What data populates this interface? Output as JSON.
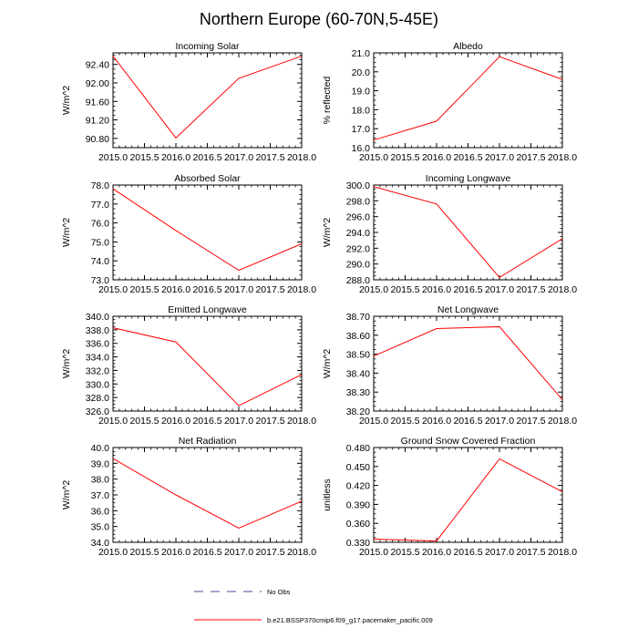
{
  "figure": {
    "title": "Northern Europe (60-70N,5-45E)"
  },
  "legend": {
    "entries": [
      {
        "label": "No Obs",
        "color": "#4b4b9a",
        "style": "dashed"
      },
      {
        "label": "b.e21.BSSP370cmip6.f09_g17.pacemaker_pacific.009",
        "color": "#ff0000",
        "style": "solid"
      }
    ]
  },
  "chart_data": [
    {
      "type": "line",
      "title": "Incoming Solar",
      "ylabel": "W/m^2",
      "x": [
        2015.0,
        2016.0,
        2017.0,
        2018.0
      ],
      "values": [
        92.58,
        90.81,
        92.1,
        92.58
      ],
      "ylim": [
        90.6,
        92.65
      ],
      "yticks": [
        90.8,
        91.2,
        91.6,
        92.0,
        92.4
      ],
      "ydec": 2,
      "color": "#ff0000"
    },
    {
      "type": "line",
      "title": "Albedo",
      "ylabel": "% reflected",
      "x": [
        2015.0,
        2016.0,
        2017.0,
        2018.0
      ],
      "values": [
        16.4,
        17.4,
        20.8,
        19.6
      ],
      "ylim": [
        16.0,
        21.0
      ],
      "yticks": [
        16.0,
        17.0,
        18.0,
        19.0,
        20.0,
        21.0
      ],
      "ydec": 1,
      "color": "#ff0000"
    },
    {
      "type": "line",
      "title": "Absorbed Solar",
      "ylabel": "W/m^2",
      "x": [
        2015.0,
        2016.0,
        2017.0,
        2018.0
      ],
      "values": [
        77.8,
        75.6,
        73.5,
        74.9
      ],
      "ylim": [
        73.0,
        78.0
      ],
      "yticks": [
        73.0,
        74.0,
        75.0,
        76.0,
        77.0,
        78.0
      ],
      "ydec": 1,
      "color": "#ff0000"
    },
    {
      "type": "line",
      "title": "Incoming Longwave",
      "ylabel": "W/m^2",
      "x": [
        2015.0,
        2016.0,
        2017.0,
        2018.0
      ],
      "values": [
        299.8,
        297.6,
        288.3,
        293.2
      ],
      "ylim": [
        288.0,
        300.0
      ],
      "yticks": [
        288.0,
        290.0,
        292.0,
        294.0,
        296.0,
        298.0,
        300.0
      ],
      "ydec": 1,
      "color": "#ff0000"
    },
    {
      "type": "line",
      "title": "Emitted Longwave",
      "ylabel": "W/m^2",
      "x": [
        2015.0,
        2016.0,
        2017.0,
        2018.0
      ],
      "values": [
        338.3,
        336.2,
        326.8,
        331.4
      ],
      "ylim": [
        326.0,
        340.0
      ],
      "yticks": [
        326.0,
        328.0,
        330.0,
        332.0,
        334.0,
        336.0,
        338.0,
        340.0
      ],
      "ydec": 1,
      "color": "#ff0000"
    },
    {
      "type": "line",
      "title": "Net Longwave",
      "ylabel": "W/m^2",
      "x": [
        2015.0,
        2016.0,
        2017.0,
        2018.0
      ],
      "values": [
        38.49,
        38.635,
        38.645,
        38.26
      ],
      "ylim": [
        38.2,
        38.7
      ],
      "yticks": [
        38.2,
        38.3,
        38.4,
        38.5,
        38.6,
        38.7
      ],
      "ydec": 2,
      "color": "#ff0000"
    },
    {
      "type": "line",
      "title": "Net Radiation",
      "ylabel": "W/m^2",
      "x": [
        2015.0,
        2016.0,
        2017.0,
        2018.0
      ],
      "values": [
        39.3,
        37.0,
        34.9,
        36.6
      ],
      "ylim": [
        34.0,
        40.0
      ],
      "yticks": [
        34.0,
        35.0,
        36.0,
        37.0,
        38.0,
        39.0,
        40.0
      ],
      "ydec": 1,
      "color": "#ff0000"
    },
    {
      "type": "line",
      "title": "Ground Snow Covered Fraction",
      "ylabel": "unitless",
      "x": [
        2015.0,
        2016.0,
        2017.0,
        2018.0
      ],
      "values": [
        0.335,
        0.332,
        0.462,
        0.41
      ],
      "ylim": [
        0.33,
        0.48
      ],
      "yticks": [
        0.33,
        0.36,
        0.39,
        0.42,
        0.45,
        0.48
      ],
      "ydec": 3,
      "color": "#ff0000"
    }
  ],
  "xaxis": {
    "xlim": [
      2015.0,
      2018.0
    ],
    "xticks": [
      2015.0,
      2015.5,
      2016.0,
      2016.5,
      2017.0,
      2017.5,
      2018.0
    ],
    "xdec": 1
  }
}
